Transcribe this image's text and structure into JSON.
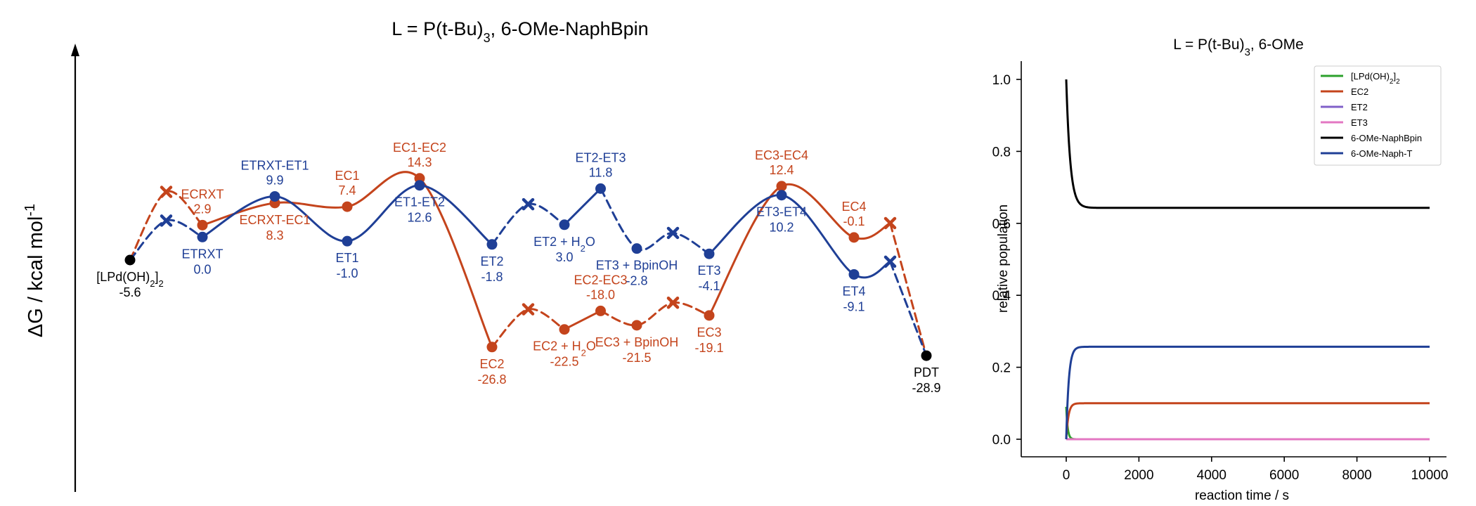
{
  "colors": {
    "ec": "#c4441c",
    "et": "#1f3f96",
    "black": "#000000"
  },
  "left_chart": {
    "title": "L = P(t-Bu)",
    "title_sub": "3",
    "title_rest": ", 6-OMe-NaphBpin",
    "ylabel": "ΔG / kcal mol",
    "ylabel_sup": "-1"
  },
  "chart_data": [
    {
      "type": "line",
      "title": "L = P(t-Bu)3, 6-OMe-NaphBpin",
      "ylabel": "ΔG / kcal mol-1",
      "series": [
        {
          "name": "EC",
          "color": "#c4441c",
          "points": [
            {
              "x": 0,
              "y": -5.6,
              "kind": "start"
            },
            {
              "x": 0.5,
              "y": 11.0,
              "kind": "x"
            },
            {
              "x": 1,
              "y": 2.9,
              "kind": "point",
              "label": "ECRXT",
              "value": "2.9",
              "labelPos": "above"
            },
            {
              "x": 2,
              "y": 8.3,
              "kind": "point",
              "label": "ECRXT-EC1",
              "value": "8.3",
              "labelPos": "below"
            },
            {
              "x": 3,
              "y": 7.4,
              "kind": "point",
              "label": "EC1",
              "value": "7.4",
              "labelPos": "above"
            },
            {
              "x": 4,
              "y": 14.3,
              "kind": "point",
              "label": "EC1-EC2",
              "value": "14.3",
              "labelPos": "above"
            },
            {
              "x": 5,
              "y": -26.8,
              "kind": "point",
              "label": "EC2",
              "value": "-26.8",
              "labelPos": "below"
            },
            {
              "x": 5.5,
              "y": -17.6,
              "kind": "x"
            },
            {
              "x": 6,
              "y": -22.5,
              "kind": "point",
              "label": "EC2 + H2O",
              "value": "-22.5",
              "labelPos": "below"
            },
            {
              "x": 6.5,
              "y": -18.0,
              "kind": "point",
              "label": "EC2-EC3",
              "value": "-18.0",
              "labelPos": "above"
            },
            {
              "x": 7,
              "y": -21.5,
              "kind": "point",
              "label": "EC3 + BpinOH",
              "value": "-21.5",
              "labelPos": "below"
            },
            {
              "x": 7.5,
              "y": -16.0,
              "kind": "x"
            },
            {
              "x": 8,
              "y": -19.1,
              "kind": "point",
              "label": "EC3",
              "value": "-19.1",
              "labelPos": "below"
            },
            {
              "x": 9,
              "y": 12.4,
              "kind": "point",
              "label": "EC3-EC4",
              "value": "12.4",
              "labelPos": "above"
            },
            {
              "x": 10,
              "y": -0.1,
              "kind": "point",
              "label": "EC4",
              "value": "-0.1",
              "labelPos": "above"
            },
            {
              "x": 10.5,
              "y": 3.4,
              "kind": "x"
            },
            {
              "x": 11,
              "y": -28.9,
              "kind": "end"
            }
          ],
          "solid_segments": [
            [
              2,
              6
            ],
            [
              8,
              9
            ],
            [
              12,
              15
            ]
          ],
          "dashed_segments": [
            [
              0,
              2
            ],
            [
              6,
              8
            ],
            [
              9,
              12
            ],
            [
              15,
              16
            ]
          ]
        },
        {
          "name": "ET",
          "color": "#1f3f96",
          "points": [
            {
              "x": 0,
              "y": -5.6,
              "kind": "start",
              "label": "[LPd(OH)2]2",
              "value": "-5.6",
              "labelPos": "below"
            },
            {
              "x": 0.5,
              "y": 4.0,
              "kind": "x"
            },
            {
              "x": 1,
              "y": 0.0,
              "kind": "point",
              "label": "ETRXT",
              "value": "0.0",
              "labelPos": "below"
            },
            {
              "x": 2,
              "y": 9.9,
              "kind": "point",
              "label": "ETRXT-ET1",
              "value": "9.9",
              "labelPos": "above"
            },
            {
              "x": 3,
              "y": -1.0,
              "kind": "point",
              "label": "ET1",
              "value": "-1.0",
              "labelPos": "below"
            },
            {
              "x": 4,
              "y": 12.6,
              "kind": "point",
              "label": "ET1-ET2",
              "value": "12.6",
              "labelPos": "below"
            },
            {
              "x": 5,
              "y": -1.8,
              "kind": "point",
              "label": "ET2",
              "value": "-1.8",
              "labelPos": "below"
            },
            {
              "x": 5.5,
              "y": 8.0,
              "kind": "x"
            },
            {
              "x": 6,
              "y": 3.0,
              "kind": "point",
              "label": "ET2 + H2O",
              "value": "3.0",
              "labelPos": "below"
            },
            {
              "x": 6.5,
              "y": 11.8,
              "kind": "point",
              "label": "ET2-ET3",
              "value": "11.8",
              "labelPos": "above"
            },
            {
              "x": 7,
              "y": -2.8,
              "kind": "point",
              "label": "ET3 + BpinOH",
              "value": "-2.8",
              "labelPos": "below"
            },
            {
              "x": 7.5,
              "y": 1.0,
              "kind": "x"
            },
            {
              "x": 8,
              "y": -4.1,
              "kind": "point",
              "label": "ET3",
              "value": "-4.1",
              "labelPos": "below"
            },
            {
              "x": 9,
              "y": 10.2,
              "kind": "point",
              "label": "ET3-ET4",
              "value": "10.2",
              "labelPos": "below"
            },
            {
              "x": 10,
              "y": -9.1,
              "kind": "point",
              "label": "ET4",
              "value": "-9.1",
              "labelPos": "below"
            },
            {
              "x": 10.5,
              "y": -6.0,
              "kind": "x"
            },
            {
              "x": 11,
              "y": -28.9,
              "kind": "end",
              "label": "PDT",
              "value": "-28.9",
              "labelPos": "below"
            }
          ],
          "solid_segments": [
            [
              2,
              6
            ],
            [
              8,
              9
            ],
            [
              12,
              15
            ]
          ],
          "dashed_segments": [
            [
              0,
              2
            ],
            [
              6,
              8
            ],
            [
              9,
              12
            ],
            [
              15,
              16
            ]
          ]
        }
      ]
    },
    {
      "type": "line",
      "title": "L = P(t-Bu)3, 6-OMe",
      "xlabel": "reaction time / s",
      "ylabel": "relative population",
      "xlim": [
        0,
        10000
      ],
      "ylim": [
        0,
        1.0
      ],
      "xticks": [
        0,
        2000,
        4000,
        6000,
        8000,
        10000
      ],
      "yticks": [
        0.0,
        0.2,
        0.4,
        0.6,
        0.8,
        1.0
      ],
      "legend_position": "top-right",
      "series": [
        {
          "name": "[LPd(OH)2]2",
          "color": "#2ca02c",
          "start": 0.09,
          "final": 0.0,
          "tau": 40
        },
        {
          "name": "EC2",
          "color": "#c4441c",
          "start": 0.0,
          "final": 0.1,
          "tau": 60
        },
        {
          "name": "ET2",
          "color": "#8060c8",
          "start": 0.0,
          "final": 0.0,
          "tau": 60
        },
        {
          "name": "ET3",
          "color": "#e377c2",
          "start": 0.0,
          "final": 0.0,
          "tau": 60
        },
        {
          "name": "6-OMe-NaphBpin",
          "color": "#000000",
          "start": 1.0,
          "final": 0.643,
          "tau": 110
        },
        {
          "name": "6-OMe-Naph-T",
          "color": "#1f3f96",
          "start": 0.0,
          "final": 0.257,
          "tau": 70
        }
      ]
    }
  ],
  "right_chart": {
    "title": "L = P(t-Bu)",
    "title_sub": "3",
    "title_rest": ", 6-OMe",
    "legend": [
      {
        "text": "[LPd(OH)",
        "sub": "2",
        "text2": "]",
        "sub2": "2"
      },
      {
        "text": "EC2"
      },
      {
        "text": "ET2"
      },
      {
        "text": "ET3"
      },
      {
        "text": "6-OMe-NaphBpin"
      },
      {
        "text": "6-OMe-Naph-T"
      }
    ]
  }
}
